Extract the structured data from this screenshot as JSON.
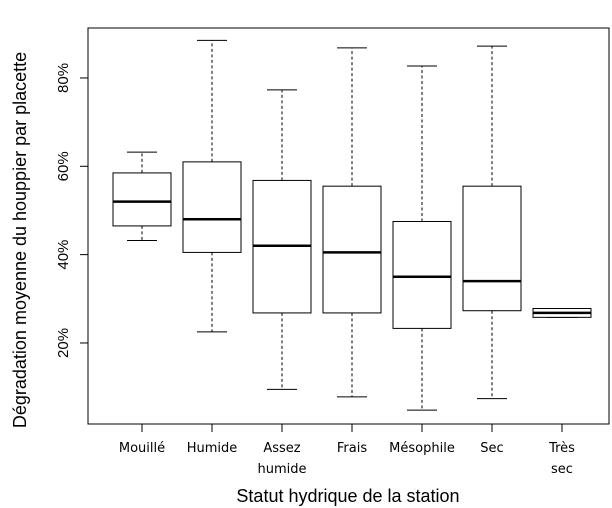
{
  "chart_data": {
    "type": "boxplot",
    "title": "",
    "xlabel": "Statut hydrique de la station",
    "ylabel": "Dégradation moyenne du houppier par placette",
    "ylim": [
      0,
      90
    ],
    "yticks": [
      20,
      40,
      60,
      80
    ],
    "ytick_labels": [
      "20%",
      "40%",
      "60%",
      "80%"
    ],
    "categories": [
      [
        "Mouillé"
      ],
      [
        "Humide"
      ],
      [
        "Assez",
        "humide"
      ],
      [
        "Frais"
      ],
      [
        "Mésophile"
      ],
      [
        "Sec"
      ],
      [
        "Très",
        "sec"
      ]
    ],
    "boxes": [
      {
        "min": 43.2,
        "q1": 46.5,
        "median": 52.0,
        "q3": 58.5,
        "max": 63.2
      },
      {
        "min": 22.5,
        "q1": 40.5,
        "median": 48.0,
        "q3": 61.0,
        "max": 88.5
      },
      {
        "min": 9.5,
        "q1": 26.8,
        "median": 42.0,
        "q3": 56.8,
        "max": 77.3
      },
      {
        "min": 7.8,
        "q1": 26.8,
        "median": 40.5,
        "q3": 55.5,
        "max": 86.8
      },
      {
        "min": 4.8,
        "q1": 23.3,
        "median": 35.0,
        "q3": 47.5,
        "max": 82.7
      },
      {
        "min": 7.4,
        "q1": 27.3,
        "median": 34.0,
        "q3": 55.5,
        "max": 87.2
      },
      {
        "min": 25.8,
        "q1": 25.8,
        "median": 26.8,
        "q3": 27.8,
        "max": 27.8
      }
    ],
    "grid": false,
    "legend": "none"
  }
}
